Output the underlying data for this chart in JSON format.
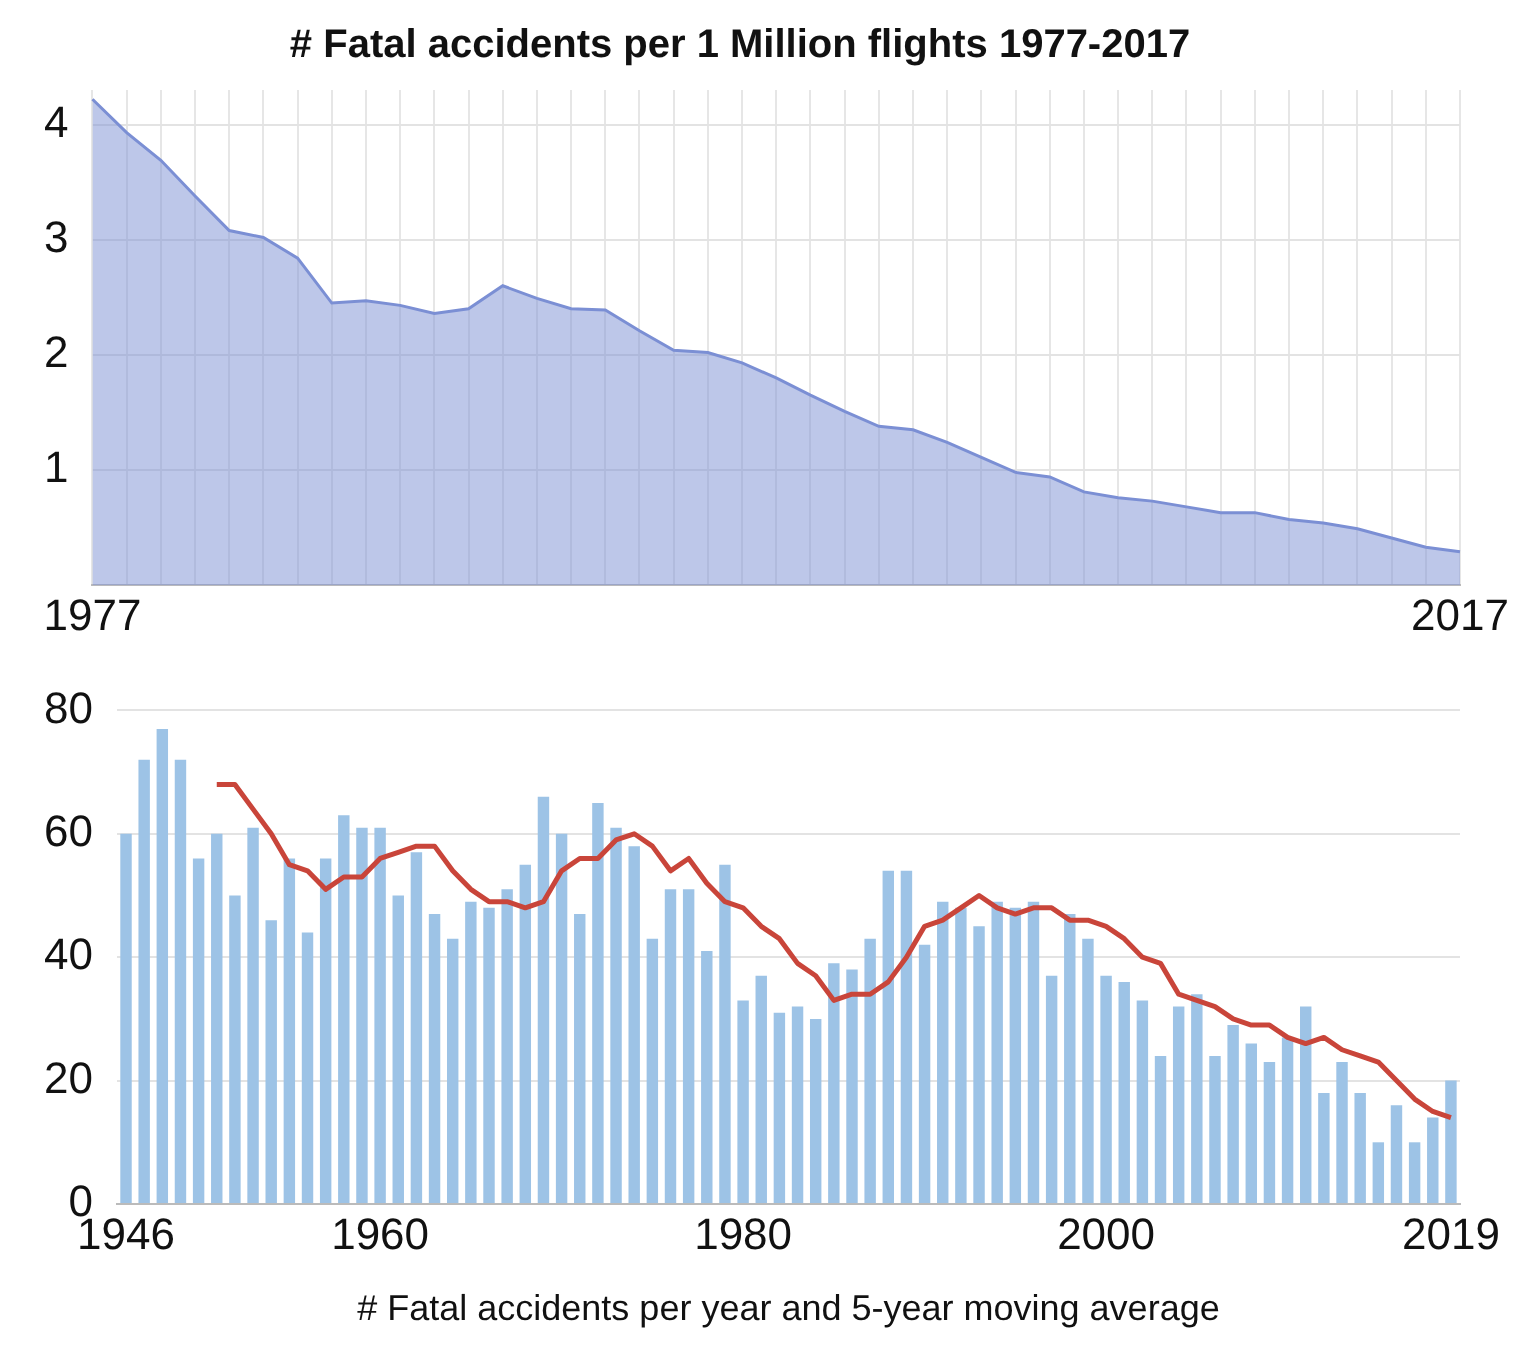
{
  "chart_data": [
    {
      "type": "area",
      "title": "# Fatal accidents per 1 Million flights 1977-2017",
      "categories": [
        "1977",
        null,
        null,
        null,
        null,
        null,
        null,
        null,
        null,
        null,
        null,
        null,
        null,
        null,
        null,
        null,
        null,
        null,
        null,
        null,
        null,
        null,
        null,
        null,
        null,
        null,
        null,
        null,
        null,
        null,
        null,
        null,
        null,
        null,
        null,
        null,
        null,
        null,
        null,
        null,
        "2017"
      ],
      "series": [
        {
          "color": "#7b8fd4",
          "values": [
            4.22,
            3.93,
            3.69,
            3.38,
            3.08,
            3.02,
            2.84,
            2.45,
            2.47,
            2.43,
            2.36,
            2.4,
            2.6,
            2.49,
            2.4,
            2.39,
            2.21,
            2.04,
            2.02,
            1.93,
            1.8,
            1.65,
            1.51,
            1.38,
            1.35,
            1.24,
            1.11,
            0.98,
            0.94,
            0.81,
            0.76,
            0.73,
            0.68,
            0.63,
            0.63,
            0.57,
            0.54,
            0.49,
            0.41,
            0.33,
            0.29
          ]
        }
      ],
      "ylim": [
        0,
        4.3
      ],
      "yticks": [
        1,
        2,
        3,
        4
      ],
      "grid": true
    },
    {
      "type": "bar",
      "xlabel": "# Fatal accidents per year and 5-year moving average",
      "categories": [
        "1946",
        null,
        null,
        null,
        null,
        null,
        null,
        null,
        null,
        null,
        null,
        null,
        null,
        null,
        "1960",
        null,
        null,
        null,
        null,
        null,
        null,
        null,
        null,
        null,
        null,
        null,
        null,
        null,
        null,
        null,
        null,
        null,
        null,
        null,
        "1980",
        null,
        null,
        null,
        null,
        null,
        null,
        null,
        null,
        null,
        null,
        null,
        null,
        null,
        null,
        null,
        null,
        null,
        null,
        null,
        "2000",
        null,
        null,
        null,
        null,
        null,
        null,
        null,
        null,
        null,
        null,
        null,
        null,
        null,
        null,
        null,
        null,
        null,
        null,
        "2019"
      ],
      "series": [
        {
          "type": "bar",
          "color": "#9dc3e6",
          "values": [
            60,
            72,
            77,
            72,
            56,
            60,
            50,
            61,
            46,
            56,
            44,
            56,
            63,
            61,
            61,
            50,
            57,
            47,
            43,
            49,
            48,
            51,
            55,
            66,
            60,
            47,
            65,
            61,
            58,
            43,
            51,
            51,
            41,
            55,
            33,
            37,
            31,
            32,
            30,
            39,
            38,
            43,
            54,
            54,
            42,
            49,
            48,
            45,
            49,
            48,
            49,
            37,
            47,
            43,
            37,
            36,
            33,
            24,
            32,
            34,
            24,
            29,
            26,
            23,
            27,
            32,
            18,
            23,
            18,
            10,
            16,
            10,
            14,
            20
          ]
        },
        {
          "type": "line",
          "color": "#c9453a",
          "values": [
            null,
            null,
            null,
            null,
            null,
            68,
            68,
            64,
            60,
            55,
            54,
            51,
            53,
            53,
            56,
            57,
            58,
            58,
            54,
            51,
            49,
            49,
            48,
            49,
            54,
            56,
            56,
            59,
            60,
            58,
            54,
            56,
            52,
            49,
            48,
            45,
            43,
            39,
            37,
            33,
            34,
            34,
            36,
            40,
            45,
            46,
            48,
            50,
            48,
            47,
            48,
            48,
            46,
            46,
            45,
            43,
            40,
            39,
            34,
            33,
            32,
            30,
            29,
            29,
            27,
            26,
            27,
            25,
            24,
            23,
            20,
            17,
            15,
            14
          ]
        }
      ],
      "ylim": [
        0,
        80
      ],
      "yticks": [
        0,
        20,
        40,
        60,
        80
      ],
      "grid": "y"
    }
  ]
}
